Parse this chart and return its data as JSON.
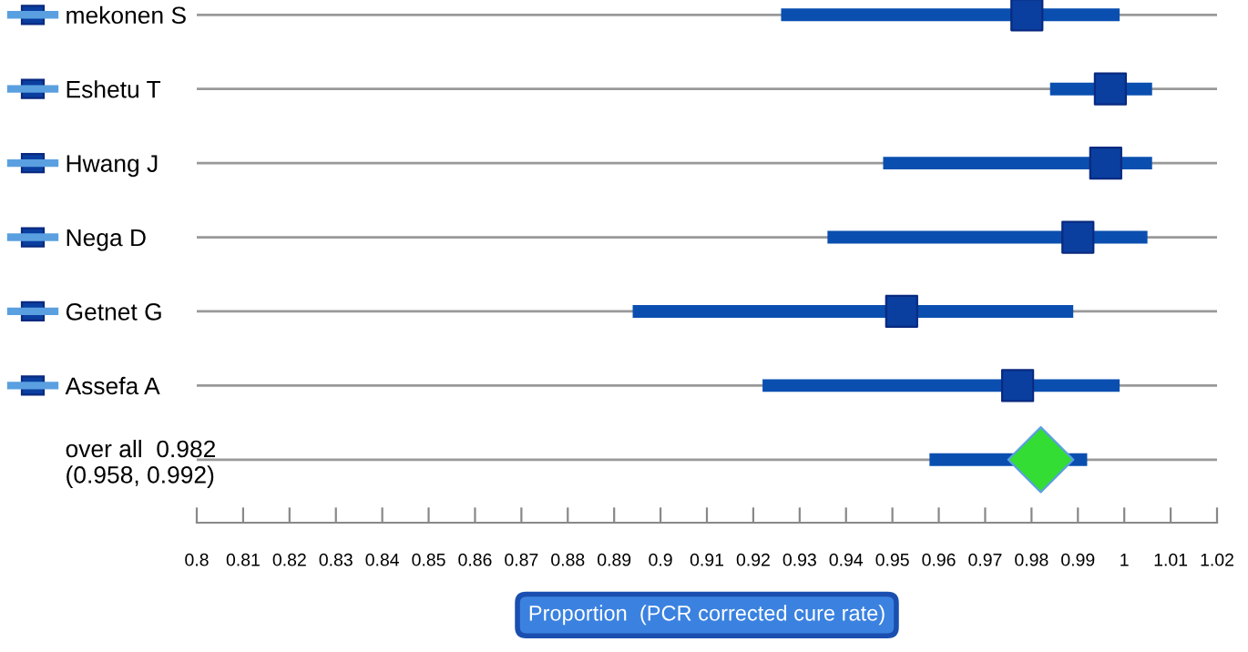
{
  "chart_data": {
    "type": "scatter",
    "orientation": "horizontal",
    "categories": [
      "mekonen S",
      "Eshetu T",
      "Hwang J",
      "Nega D",
      "Getnet G",
      "Assefa A",
      "over all  0.982\n(0.958, 0.992)"
    ],
    "series": [
      {
        "color": "#0a3fa0",
        "marker": "square",
        "colors": [
          "#0a3fa0",
          "#0a3fa0",
          "#0a3fa0",
          "#0a3fa0",
          "#0a3fa0",
          "#0a3fa0",
          null
        ],
        "values": [
          0.979,
          0.997,
          0.996,
          0.99,
          0.952,
          0.977,
          null
        ],
        "errors": [
          [
            0.926,
            0.999
          ],
          [
            0.984,
            1.006
          ],
          [
            0.948,
            1.006
          ],
          [
            0.936,
            1.005
          ],
          [
            0.894,
            0.989
          ],
          [
            0.922,
            0.999
          ],
          null
        ]
      },
      {
        "color": "#33dd33",
        "marker": "diamond",
        "values": [
          null,
          null,
          null,
          null,
          null,
          null,
          0.982
        ],
        "errors": [
          null,
          null,
          null,
          null,
          null,
          null,
          [
            0.958,
            0.992
          ]
        ]
      }
    ],
    "xlim": [
      0.8,
      1.02
    ],
    "xticks": [
      0.8,
      0.81,
      0.82,
      0.83,
      0.84,
      0.85,
      0.86,
      0.87,
      0.88,
      0.89,
      0.9,
      0.91,
      0.92,
      0.93,
      0.94,
      0.95,
      0.96,
      0.97,
      0.98,
      0.99,
      1,
      1.01,
      1.02
    ],
    "xlabel": "Proportion  (PCR corrected cure rate)",
    "grid": "y"
  }
}
